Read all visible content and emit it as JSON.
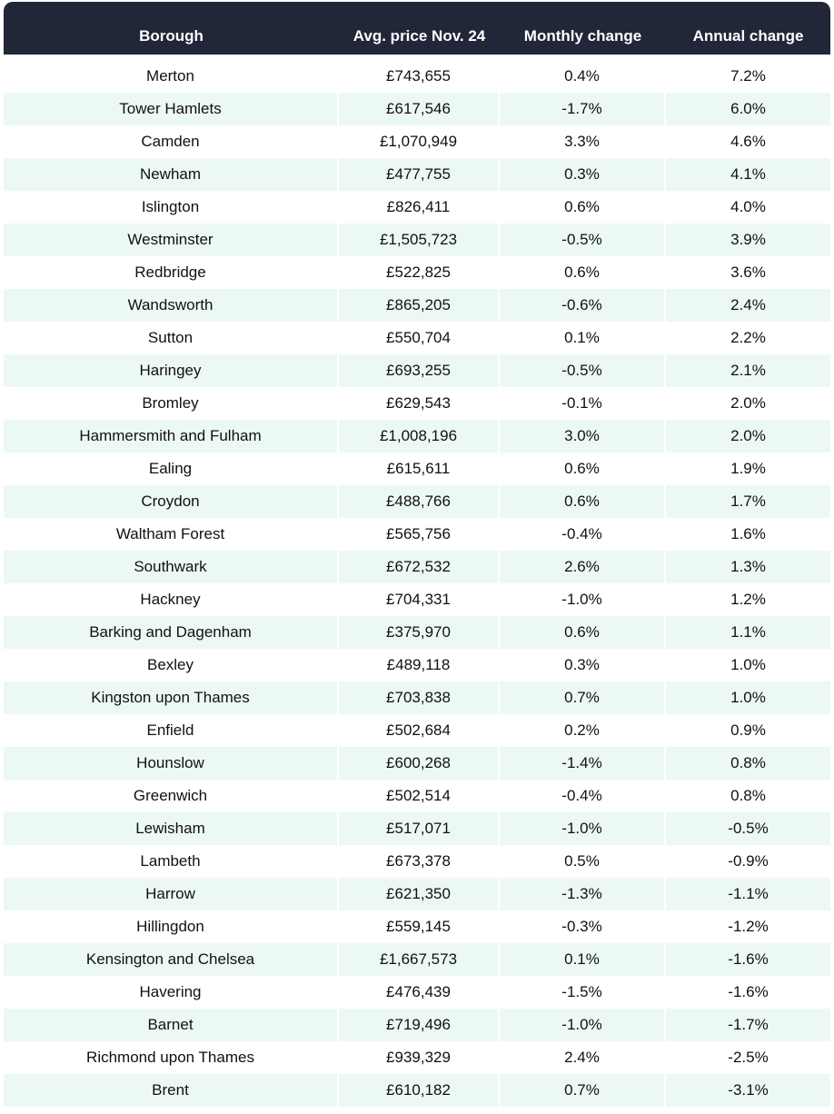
{
  "headers": [
    "Borough",
    "Avg. price Nov. 24",
    "Monthly change",
    "Annual change"
  ],
  "rows": [
    [
      "Merton",
      "£743,655",
      "0.4%",
      "7.2%"
    ],
    [
      "Tower Hamlets",
      "£617,546",
      "-1.7%",
      "6.0%"
    ],
    [
      "Camden",
      "£1,070,949",
      "3.3%",
      "4.6%"
    ],
    [
      "Newham",
      "£477,755",
      "0.3%",
      "4.1%"
    ],
    [
      "Islington",
      "£826,411",
      "0.6%",
      "4.0%"
    ],
    [
      "Westminster",
      "£1,505,723",
      "-0.5%",
      "3.9%"
    ],
    [
      "Redbridge",
      "£522,825",
      "0.6%",
      "3.6%"
    ],
    [
      "Wandsworth",
      "£865,205",
      "-0.6%",
      "2.4%"
    ],
    [
      "Sutton",
      "£550,704",
      "0.1%",
      "2.2%"
    ],
    [
      "Haringey",
      "£693,255",
      "-0.5%",
      "2.1%"
    ],
    [
      "Bromley",
      "£629,543",
      "-0.1%",
      "2.0%"
    ],
    [
      "Hammersmith and Fulham",
      "£1,008,196",
      "3.0%",
      "2.0%"
    ],
    [
      "Ealing",
      "£615,611",
      "0.6%",
      "1.9%"
    ],
    [
      "Croydon",
      "£488,766",
      "0.6%",
      "1.7%"
    ],
    [
      "Waltham Forest",
      "£565,756",
      "-0.4%",
      "1.6%"
    ],
    [
      "Southwark",
      "£672,532",
      "2.6%",
      "1.3%"
    ],
    [
      "Hackney",
      "£704,331",
      "-1.0%",
      "1.2%"
    ],
    [
      "Barking and Dagenham",
      "£375,970",
      "0.6%",
      "1.1%"
    ],
    [
      "Bexley",
      "£489,118",
      "0.3%",
      "1.0%"
    ],
    [
      "Kingston upon Thames",
      "£703,838",
      "0.7%",
      "1.0%"
    ],
    [
      "Enfield",
      "£502,684",
      "0.2%",
      "0.9%"
    ],
    [
      "Hounslow",
      "£600,268",
      "-1.4%",
      "0.8%"
    ],
    [
      "Greenwich",
      "£502,514",
      "-0.4%",
      "0.8%"
    ],
    [
      "Lewisham",
      "£517,071",
      "-1.0%",
      "-0.5%"
    ],
    [
      "Lambeth",
      "£673,378",
      "0.5%",
      "-0.9%"
    ],
    [
      "Harrow",
      "£621,350",
      "-1.3%",
      "-1.1%"
    ],
    [
      "Hillingdon",
      "£559,145",
      "-0.3%",
      "-1.2%"
    ],
    [
      "Kensington and Chelsea",
      "£1,667,573",
      "0.1%",
      "-1.6%"
    ],
    [
      "Havering",
      "£476,439",
      "-1.5%",
      "-1.6%"
    ],
    [
      "Barnet",
      "£719,496",
      "-1.0%",
      "-1.7%"
    ],
    [
      "Richmond upon Thames",
      "£939,329",
      "2.4%",
      "-2.5%"
    ],
    [
      "Brent",
      "£610,182",
      "0.7%",
      "-3.1%"
    ]
  ]
}
